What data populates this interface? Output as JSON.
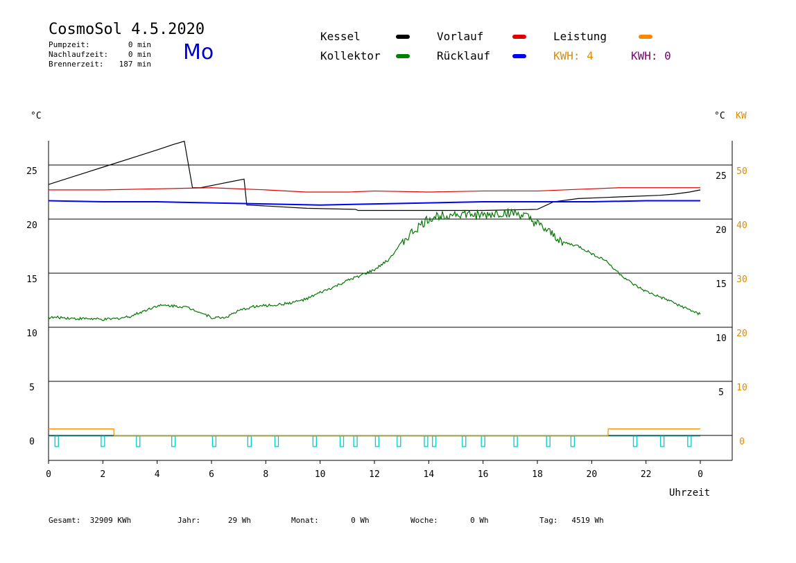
{
  "header": {
    "title": "CosmoSol 4.5.2020",
    "weekday": "Mo",
    "stats": [
      {
        "label": "Pumpzeit:",
        "value": "0 min"
      },
      {
        "label": "Nachlaufzeit:",
        "value": "0 min"
      },
      {
        "label": "Brennerzeit:",
        "value": "187 min"
      }
    ]
  },
  "legend": {
    "kessel": {
      "label": "Kessel",
      "color": "#000000"
    },
    "vorlauf": {
      "label": "Vorlauf",
      "color": "#e00000"
    },
    "leistung": {
      "label": "Leistung",
      "color": "#ff8800"
    },
    "kollektor": {
      "label": "Kollektor",
      "color": "#008000"
    },
    "ruecklauf": {
      "label": "Rücklauf",
      "color": "#0000ff"
    },
    "kwh1": "KWH: 4",
    "kwh2": "KWH: 0"
  },
  "axes": {
    "left_unit": "°C",
    "right_unit_c": "°C",
    "right_unit_kw": "KW",
    "x_label": "Uhrzeit",
    "x_ticks": [
      "0",
      "2",
      "4",
      "6",
      "8",
      "10",
      "12",
      "14",
      "16",
      "18",
      "20",
      "22",
      "0"
    ],
    "y_ticks_left": [
      "25",
      "20",
      "15",
      "10",
      "5",
      "0"
    ],
    "y_ticks_right_c": [
      "25",
      "20",
      "15",
      "10",
      "5"
    ],
    "y_ticks_right_kw": [
      "50",
      "40",
      "30",
      "20",
      "10",
      "0"
    ]
  },
  "footer": {
    "gesamt": {
      "label": "Gesamt:",
      "value": "32909 KWh"
    },
    "jahr": {
      "label": "Jahr:",
      "value": "29 Wh"
    },
    "monat": {
      "label": "Monat:",
      "value": "0 Wh"
    },
    "woche": {
      "label": "Woche:",
      "value": "0 Wh"
    },
    "tag": {
      "label": "Tag:",
      "value": "4519 Wh"
    }
  },
  "chart_data": {
    "type": "line",
    "x_unit": "hours",
    "xlim": [
      0,
      24
    ],
    "ylim": [
      -2,
      27
    ],
    "y2lim": [
      -4,
      54
    ],
    "xlabel": "Uhrzeit",
    "ylabel": "°C",
    "grid": true,
    "series": [
      {
        "name": "Kessel",
        "color": "#000000",
        "step": true,
        "x": [
          0,
          1,
          2,
          3,
          4,
          4.6,
          5.0,
          5.3,
          5.6,
          6.2,
          6.8,
          7.2,
          7.3,
          7.4,
          9.5,
          11.3,
          11.4,
          16,
          18.0,
          18.6,
          19.5,
          20.5,
          21.5,
          22.5,
          23.0,
          23.6,
          24
        ],
        "y": [
          23.2,
          24.0,
          24.8,
          25.6,
          26.4,
          26.9,
          27.2,
          22.9,
          22.9,
          23.2,
          23.5,
          23.7,
          21.3,
          21.3,
          21.0,
          20.9,
          20.8,
          20.8,
          20.9,
          21.6,
          21.9,
          22.0,
          22.1,
          22.2,
          22.3,
          22.5,
          22.7
        ]
      },
      {
        "name": "Vorlauf",
        "color": "#e00000",
        "step": true,
        "x": [
          0,
          2,
          4,
          6,
          8,
          9.5,
          11,
          12,
          14,
          16,
          18,
          20,
          21,
          22,
          24
        ],
        "y": [
          22.7,
          22.7,
          22.8,
          22.9,
          22.7,
          22.5,
          22.5,
          22.6,
          22.5,
          22.6,
          22.6,
          22.8,
          22.9,
          22.9,
          22.9
        ]
      },
      {
        "name": "Rücklauf",
        "color": "#0000ff",
        "step": true,
        "x": [
          0,
          2,
          4,
          6,
          8,
          10,
          12,
          14,
          16,
          18,
          20,
          22,
          24
        ],
        "y": [
          21.7,
          21.6,
          21.6,
          21.5,
          21.4,
          21.3,
          21.4,
          21.5,
          21.6,
          21.6,
          21.6,
          21.7,
          21.7
        ]
      },
      {
        "name": "Kollektor",
        "color": "#007700",
        "step": false,
        "x": [
          0,
          0.5,
          1,
          1.5,
          2,
          2.5,
          3,
          3.5,
          4,
          4.5,
          5,
          5.5,
          6,
          6.5,
          7,
          7.5,
          8,
          8.5,
          9,
          9.5,
          10,
          10.5,
          11,
          11.5,
          12,
          12.5,
          13,
          13.5,
          14,
          14.5,
          15,
          15.5,
          16,
          16.5,
          17,
          17.5,
          18,
          18.5,
          19,
          19.5,
          20,
          20.5,
          21,
          21.5,
          22,
          22.5,
          23,
          23.5,
          24
        ],
        "y": [
          10.9,
          10.9,
          10.8,
          10.8,
          10.7,
          10.8,
          11.0,
          11.5,
          12.0,
          12.0,
          11.9,
          11.5,
          10.9,
          10.9,
          11.5,
          11.9,
          12.0,
          12.1,
          12.3,
          12.6,
          13.2,
          13.7,
          14.3,
          14.8,
          15.3,
          16.2,
          17.8,
          19.0,
          20.0,
          20.4,
          20.5,
          20.4,
          20.3,
          20.5,
          20.6,
          20.3,
          19.5,
          18.6,
          17.8,
          17.5,
          16.8,
          16.2,
          15.0,
          14.0,
          13.3,
          12.8,
          12.3,
          11.7,
          11.2
        ]
      },
      {
        "name": "Leistung",
        "color": "#ff8800",
        "axis": "right",
        "step": true,
        "x": [
          0,
          2.4,
          2.41,
          20.6,
          20.61,
          24
        ],
        "y": [
          0.6,
          0.6,
          0,
          0,
          0.6,
          0.6
        ]
      }
    ],
    "pump_pulses_hours": [
      0.3,
      2.0,
      3.3,
      4.6,
      6.1,
      7.4,
      8.4,
      9.8,
      10.8,
      11.3,
      12.1,
      12.9,
      13.9,
      14.2,
      15.3,
      16.0,
      17.2,
      18.4,
      19.3,
      21.6,
      22.6,
      23.6
    ],
    "pulse_color": "#00cccc"
  }
}
